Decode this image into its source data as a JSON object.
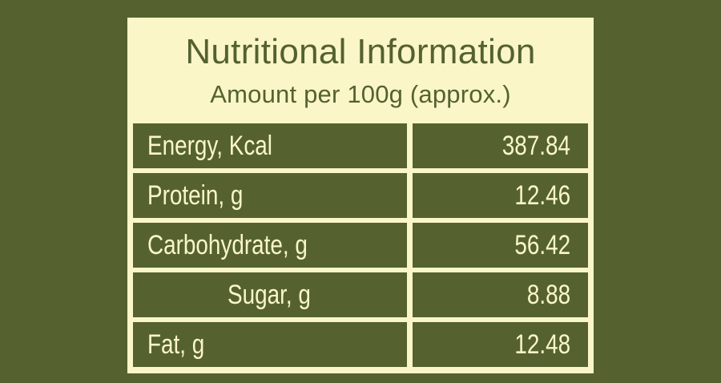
{
  "colors": {
    "background": "#556230",
    "panel": "#FBF6C8",
    "header_text": "#546131",
    "cell_fill": "#556230",
    "cell_text": "#FBF6C8"
  },
  "header": {
    "title": "Nutritional Information",
    "subtitle": "Amount per 100g (approx.)"
  },
  "table": {
    "rows": [
      {
        "label": "Energy, Kcal",
        "value": "387.84",
        "indent": false
      },
      {
        "label": "Protein, g",
        "value": "12.46",
        "indent": false
      },
      {
        "label": "Carbohydrate, g",
        "value": "56.42",
        "indent": false
      },
      {
        "label": "Sugar, g",
        "value": "8.88",
        "indent": true
      },
      {
        "label": "Fat, g",
        "value": "12.48",
        "indent": false
      }
    ]
  }
}
